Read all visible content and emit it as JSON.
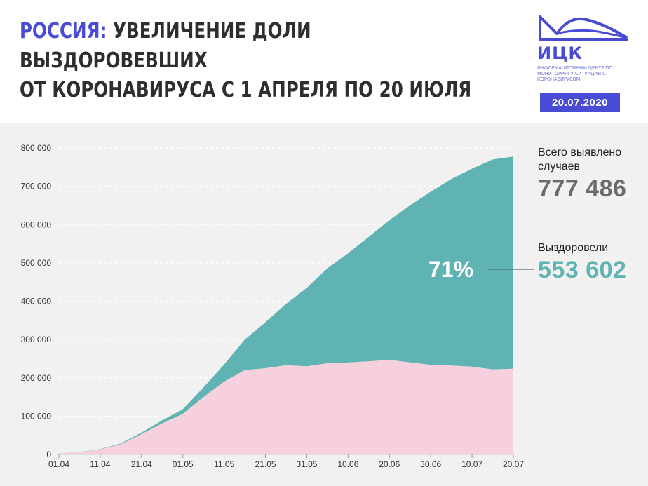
{
  "header": {
    "title_accent": "РОССИЯ:",
    "title_line1_rest": " УВЕЛИЧЕНИЕ ДОЛИ ВЫЗДОРОВЕВШИХ",
    "title_line2": "ОТ КОРОНАВИРУСА С 1 АПРЕЛЯ ПО 20 ИЮЛЯ",
    "logo_name": "ИЦК",
    "logo_sub": "Информационный центр по мониторингу ситуации с коронавирусом",
    "date": "20.07.2020"
  },
  "stats": {
    "total_label": "Всего выявлено случаев",
    "total_value": "777 486",
    "recovered_label": "Выздоровели",
    "recovered_value": "553 602",
    "recovered_pct": "71%"
  },
  "colors": {
    "accent": "#4a4bd4",
    "recovered": "#5fb3b3",
    "active": "#f7d0dd",
    "total_value": "#6b6b6b",
    "recovered_value": "#5fb3b3"
  },
  "chart_data": {
    "type": "area",
    "stacked": true,
    "title": "",
    "xlabel": "",
    "ylabel": "",
    "ylim": [
      0,
      800000
    ],
    "yticks": [
      0,
      100000,
      200000,
      300000,
      400000,
      500000,
      600000,
      700000,
      800000
    ],
    "ytick_labels": [
      "0",
      "100 000",
      "200 000",
      "300 000",
      "400 000",
      "500 000",
      "600 000",
      "700 000",
      "800 000"
    ],
    "xlim": [
      "01.04",
      "20.07"
    ],
    "xtick_labels": [
      "01.04",
      "11.04",
      "21.04",
      "01.05",
      "11.05",
      "21.05",
      "31.05",
      "10.06",
      "20.06",
      "30.06",
      "10.07",
      "20.07"
    ],
    "grid": "horizontal dashed",
    "x": [
      "01.04",
      "06.04",
      "11.04",
      "16.04",
      "21.04",
      "26.04",
      "01.05",
      "06.05",
      "11.05",
      "16.05",
      "21.05",
      "26.05",
      "31.05",
      "05.06",
      "10.06",
      "15.06",
      "20.06",
      "25.06",
      "30.06",
      "05.07",
      "10.07",
      "15.07",
      "20.07"
    ],
    "series": [
      {
        "name": "",
        "values": [
          2700,
          6000,
          13000,
          27000,
          53000,
          81000,
          106000,
          150000,
          190000,
          220000,
          225000,
          233000,
          230000,
          238000,
          240000,
          243000,
          247000,
          240000,
          234000,
          232000,
          229000,
          222000,
          223900
        ]
      },
      {
        "name": "Выздоровели",
        "values": [
          200,
          400,
          1000,
          2000,
          4000,
          8000,
          12000,
          25000,
          45000,
          80000,
          120000,
          160000,
          205000,
          248000,
          285000,
          325000,
          365000,
          410000,
          452000,
          487000,
          517000,
          548000,
          553602
        ]
      }
    ],
    "annotations": [
      "71%"
    ]
  }
}
